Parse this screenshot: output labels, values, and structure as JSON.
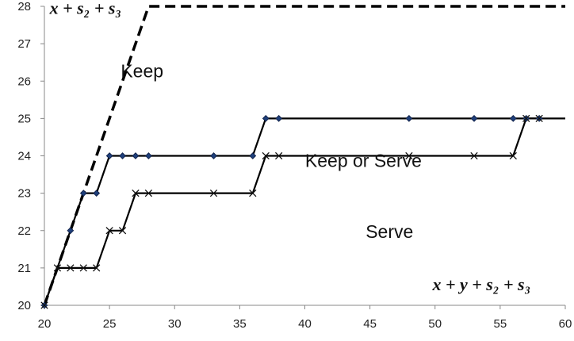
{
  "chart_data": {
    "type": "line",
    "xlim": [
      20,
      60
    ],
    "ylim": [
      20,
      28
    ],
    "x_ticks": [
      20,
      25,
      30,
      35,
      40,
      45,
      50,
      55,
      60
    ],
    "y_ticks": [
      20,
      21,
      22,
      23,
      24,
      25,
      26,
      27,
      28
    ],
    "grid": false,
    "series": [
      {
        "style": "dashed",
        "points": [
          [
            20,
            20
          ],
          [
            28,
            28
          ],
          [
            60,
            28
          ]
        ]
      },
      {
        "marker": "diamond",
        "points": [
          [
            20,
            20
          ],
          [
            22,
            22
          ],
          [
            23,
            23
          ],
          [
            24,
            23
          ],
          [
            25,
            24
          ],
          [
            26,
            24
          ],
          [
            27,
            24
          ],
          [
            28,
            24
          ],
          [
            33,
            24
          ],
          [
            36,
            24
          ],
          [
            37,
            25
          ],
          [
            38,
            25
          ],
          [
            48,
            25
          ],
          [
            53,
            25
          ],
          [
            56,
            25
          ],
          [
            57,
            25
          ],
          [
            58,
            25
          ],
          [
            60,
            25
          ]
        ],
        "marker_points": [
          [
            20,
            20
          ],
          [
            22,
            22
          ],
          [
            23,
            23
          ],
          [
            24,
            23
          ],
          [
            25,
            24
          ],
          [
            26,
            24
          ],
          [
            27,
            24
          ],
          [
            28,
            24
          ],
          [
            33,
            24
          ],
          [
            36,
            24
          ],
          [
            37,
            25
          ],
          [
            38,
            25
          ],
          [
            48,
            25
          ],
          [
            53,
            25
          ],
          [
            56,
            25
          ],
          [
            57,
            25
          ],
          [
            58,
            25
          ]
        ]
      },
      {
        "marker": "x",
        "points": [
          [
            20,
            20
          ],
          [
            21,
            21
          ],
          [
            22,
            21
          ],
          [
            23,
            21
          ],
          [
            24,
            21
          ],
          [
            25,
            22
          ],
          [
            26,
            22
          ],
          [
            27,
            23
          ],
          [
            28,
            23
          ],
          [
            33,
            23
          ],
          [
            36,
            23
          ],
          [
            37,
            24
          ],
          [
            38,
            24
          ],
          [
            48,
            24
          ],
          [
            53,
            24
          ],
          [
            56,
            24
          ],
          [
            57,
            25
          ],
          [
            58,
            25
          ]
        ],
        "marker_points": [
          [
            20,
            20
          ],
          [
            21,
            21
          ],
          [
            22,
            21
          ],
          [
            23,
            21
          ],
          [
            24,
            21
          ],
          [
            25,
            22
          ],
          [
            26,
            22
          ],
          [
            27,
            23
          ],
          [
            28,
            23
          ],
          [
            33,
            23
          ],
          [
            36,
            23
          ],
          [
            37,
            24
          ],
          [
            38,
            24
          ],
          [
            48,
            24
          ],
          [
            53,
            24
          ],
          [
            56,
            24
          ],
          [
            57,
            25
          ],
          [
            58,
            25
          ]
        ]
      }
    ],
    "annotations": [
      {
        "text": "Keep",
        "x": 27.5,
        "y": 26.1,
        "kind": "region"
      },
      {
        "text": "Keep or Serve",
        "x": 44.5,
        "y": 23.7,
        "kind": "region"
      },
      {
        "text": "Serve",
        "x": 46.5,
        "y": 21.8,
        "kind": "region"
      },
      {
        "text": "x + s₂ + s₃",
        "x": 20.4,
        "y": 27.8,
        "kind": "math"
      },
      {
        "text": "x + y + s₂ + s₃",
        "x": 49.8,
        "y": 20.4,
        "kind": "math"
      }
    ],
    "colors": {
      "line": "#000000",
      "diamond_fill": "#1f3f7a",
      "diamond_stroke": "#0a1a40",
      "x_marker": "#111111",
      "axis": "#888888"
    }
  }
}
